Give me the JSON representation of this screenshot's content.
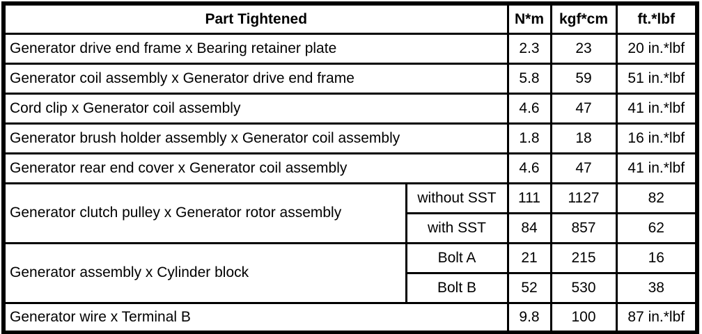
{
  "colors": {
    "border": "#000000",
    "background": "#ffffff",
    "text": "#000000"
  },
  "table": {
    "header": {
      "part": "Part Tightened",
      "nm": "N*m",
      "kgfcm": "kgf*cm",
      "ftlbf": "ft.*lbf"
    },
    "rows": [
      {
        "part": "Generator drive end frame x Bearing retainer plate",
        "nm": "2.3",
        "kgfcm": "23",
        "ftlbf": "20 in.*lbf"
      },
      {
        "part": "Generator coil assembly x Generator drive end frame",
        "nm": "5.8",
        "kgfcm": "59",
        "ftlbf": "51 in.*lbf"
      },
      {
        "part": "Cord clip x Generator coil assembly",
        "nm": "4.6",
        "kgfcm": "47",
        "ftlbf": "41 in.*lbf"
      },
      {
        "part": "Generator brush holder assembly x Generator coil assembly",
        "nm": "1.8",
        "kgfcm": "18",
        "ftlbf": "16 in.*lbf"
      },
      {
        "part": "Generator rear end cover x Generator coil assembly",
        "nm": "4.6",
        "kgfcm": "47",
        "ftlbf": "41 in.*lbf"
      },
      {
        "part": "Generator clutch pulley x Generator rotor assembly",
        "sub": "without SST",
        "nm": "111",
        "kgfcm": "1127",
        "ftlbf": "82"
      },
      {
        "sub": "with SST",
        "nm": "84",
        "kgfcm": "857",
        "ftlbf": "62"
      },
      {
        "part": "Generator assembly x Cylinder block",
        "sub": "Bolt A",
        "nm": "21",
        "kgfcm": "215",
        "ftlbf": "16"
      },
      {
        "sub": "Bolt B",
        "nm": "52",
        "kgfcm": "530",
        "ftlbf": "38"
      },
      {
        "part": "Generator wire x Terminal B",
        "nm": "9.8",
        "kgfcm": "100",
        "ftlbf": "87 in.*lbf"
      }
    ]
  }
}
